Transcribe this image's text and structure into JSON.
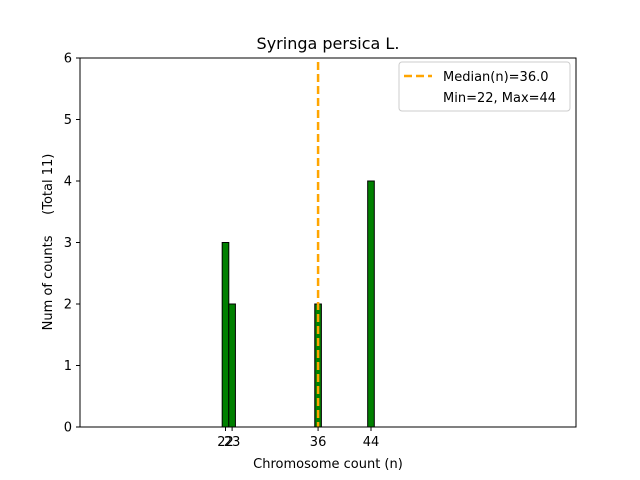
{
  "chart_data": {
    "type": "bar",
    "title": "Syringa persica L.",
    "xlabel": "Chromosome count (n)",
    "ylabel": "Num of counts     (Total 11)",
    "x": [
      22,
      23,
      36,
      44
    ],
    "values": [
      3,
      2,
      2,
      4
    ],
    "xlim": [
      0,
      75
    ],
    "ylim": [
      0,
      6
    ],
    "yticks": [
      0,
      1,
      2,
      3,
      4,
      5,
      6
    ],
    "xticks": [
      22,
      23,
      36,
      44
    ],
    "xtick_labels": [
      "22",
      "23",
      "36",
      "44"
    ],
    "bar_width": 1,
    "median": 36.0,
    "legend": {
      "placement": "top-right",
      "entries": [
        "Median(n)=36.0",
        "Min=22, Max=44"
      ]
    },
    "colors": {
      "bar_fill": "#008000",
      "bar_edge": "#000000",
      "median_line": "#ffa500"
    }
  }
}
